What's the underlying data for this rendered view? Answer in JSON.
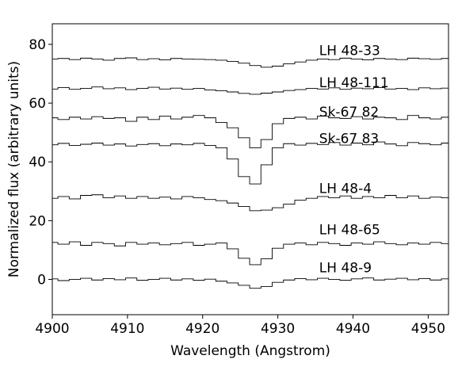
{
  "chart_data": {
    "type": "line",
    "drawstyle": "steps-mid",
    "xlabel": "Wavelength (Angstrom)",
    "ylabel": "Normalized flux (arbitrary units)",
    "xlim": [
      4900,
      4952.7
    ],
    "ylim": [
      -12,
      87
    ],
    "xticks": [
      4900,
      4910,
      4920,
      4930,
      4940,
      4950
    ],
    "yticks": [
      0,
      20,
      40,
      60,
      80
    ],
    "grid": false,
    "line_color": "#000000",
    "x": [
      4900.0,
      4901.5,
      4903.0,
      4904.5,
      4906.0,
      4907.5,
      4909.0,
      4910.5,
      4912.0,
      4913.5,
      4915.0,
      4916.5,
      4918.0,
      4919.5,
      4921.0,
      4922.5,
      4924.0,
      4925.5,
      4927.0,
      4928.5,
      4930.0,
      4931.5,
      4933.0,
      4934.5,
      4936.0,
      4937.5,
      4939.0,
      4940.5,
      4942.0,
      4943.5,
      4945.0,
      4946.5,
      4948.0,
      4949.5,
      4951.0,
      4952.5
    ],
    "series": [
      {
        "name": "LH 48-33",
        "label_x": 4935.5,
        "label_y": 78,
        "values": [
          75.0,
          75.2,
          74.8,
          75.3,
          75.0,
          74.6,
          75.2,
          75.4,
          74.8,
          75.1,
          74.7,
          75.2,
          75.0,
          74.9,
          74.8,
          74.6,
          74.2,
          73.6,
          72.8,
          72.2,
          72.6,
          73.4,
          74.0,
          74.6,
          75.0,
          74.8,
          75.3,
          75.0,
          74.7,
          75.2,
          75.0,
          74.8,
          75.3,
          75.1,
          74.9,
          75.2
        ]
      },
      {
        "name": "LH 48-111",
        "label_x": 4935.5,
        "label_y": 67,
        "values": [
          64.8,
          65.3,
          64.7,
          65.0,
          65.5,
          64.9,
          65.2,
          64.6,
          65.0,
          65.4,
          64.8,
          65.1,
          64.7,
          65.0,
          64.5,
          64.2,
          63.8,
          63.3,
          63.0,
          63.4,
          63.8,
          64.3,
          64.6,
          65.0,
          64.8,
          65.2,
          64.7,
          65.1,
          64.9,
          65.3,
          64.8,
          65.0,
          64.6,
          65.2,
          64.9,
          65.1
        ]
      },
      {
        "name": "Sk-67 82",
        "label_x": 4935.5,
        "label_y": 57,
        "values": [
          55.0,
          54.4,
          55.2,
          54.6,
          55.4,
          54.8,
          55.0,
          53.8,
          55.2,
          54.4,
          55.6,
          54.6,
          55.2,
          55.8,
          55.0,
          53.4,
          51.6,
          48.2,
          44.8,
          47.6,
          53.0,
          54.8,
          55.2,
          54.6,
          55.6,
          55.0,
          54.8,
          55.4,
          54.6,
          55.2,
          55.0,
          54.4,
          55.8,
          55.0,
          54.6,
          55.2
        ]
      },
      {
        "name": "Sk-67 83",
        "label_x": 4935.5,
        "label_y": 48,
        "values": [
          45.8,
          46.3,
          45.6,
          46.0,
          46.4,
          45.7,
          46.1,
          45.4,
          45.9,
          46.2,
          45.5,
          46.1,
          45.8,
          46.3,
          45.6,
          44.8,
          41.0,
          35.0,
          32.5,
          39.0,
          44.8,
          46.2,
          45.7,
          46.3,
          45.9,
          46.6,
          45.7,
          46.4,
          45.8,
          46.8,
          46.1,
          45.5,
          46.6,
          46.2,
          45.8,
          46.4
        ]
      },
      {
        "name": "LH 48-4",
        "label_x": 4935.5,
        "label_y": 31,
        "values": [
          27.6,
          28.2,
          27.4,
          28.6,
          28.8,
          27.8,
          28.4,
          27.6,
          28.2,
          27.6,
          28.0,
          27.4,
          28.2,
          27.8,
          27.2,
          26.8,
          26.0,
          24.8,
          23.4,
          23.6,
          24.4,
          25.6,
          27.0,
          27.6,
          28.2,
          27.8,
          28.4,
          27.6,
          28.2,
          27.8,
          28.6,
          27.8,
          28.4,
          27.6,
          28.0,
          27.8
        ]
      },
      {
        "name": "LH 48-65",
        "label_x": 4935.5,
        "label_y": 17,
        "values": [
          12.6,
          12.0,
          12.8,
          11.6,
          12.6,
          12.2,
          11.4,
          12.6,
          12.0,
          12.4,
          11.8,
          12.2,
          12.6,
          11.6,
          12.0,
          12.4,
          10.4,
          7.2,
          5.0,
          7.0,
          10.6,
          12.0,
          12.4,
          11.8,
          12.6,
          12.2,
          11.6,
          12.4,
          12.0,
          12.8,
          12.2,
          11.8,
          12.4,
          12.0,
          12.6,
          12.2
        ]
      },
      {
        "name": "LH 48-9",
        "label_x": 4935.5,
        "label_y": 4,
        "values": [
          0.2,
          -0.4,
          0.0,
          0.4,
          -0.2,
          0.3,
          -0.1,
          0.5,
          -0.3,
          0.0,
          0.4,
          -0.2,
          0.2,
          -0.3,
          0.1,
          -0.6,
          -1.2,
          -2.0,
          -3.0,
          -2.4,
          -1.0,
          -0.2,
          0.3,
          -0.1,
          0.4,
          0.0,
          -0.3,
          0.2,
          0.5,
          -0.2,
          0.1,
          0.4,
          -0.1,
          0.3,
          -0.2,
          0.2
        ]
      }
    ]
  }
}
